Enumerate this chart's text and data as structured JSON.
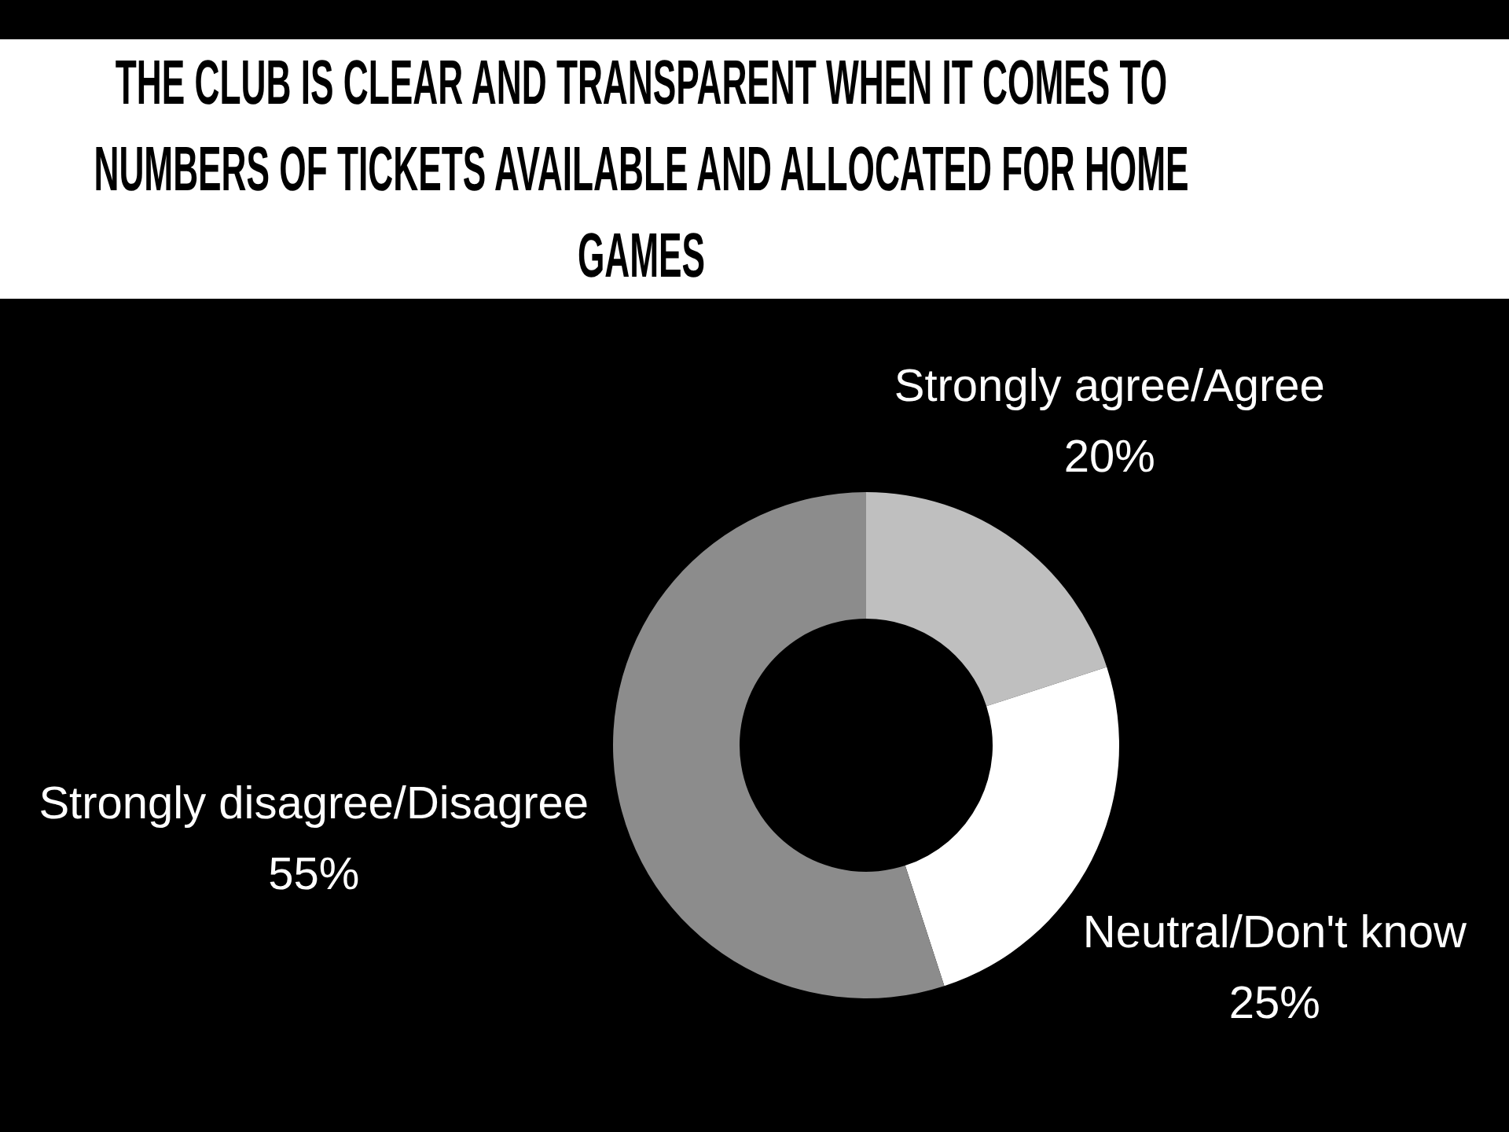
{
  "chart_data": {
    "type": "donut",
    "title": "THE CLUB IS CLEAR AND TRANSPARENT WHEN IT COMES TO NUMBERS OF TICKETS AVAILABLE AND ALLOCATED FOR HOME GAMES",
    "categories": [
      "Strongly agree/Agree",
      "Neutral/Don't know",
      "Strongly disagree/Disagree"
    ],
    "values": [
      20,
      25,
      55
    ],
    "colors": [
      "#bfbfbf",
      "#ffffff",
      "#8c8c8c"
    ],
    "value_labels": [
      "20%",
      "25%",
      "55%"
    ]
  }
}
